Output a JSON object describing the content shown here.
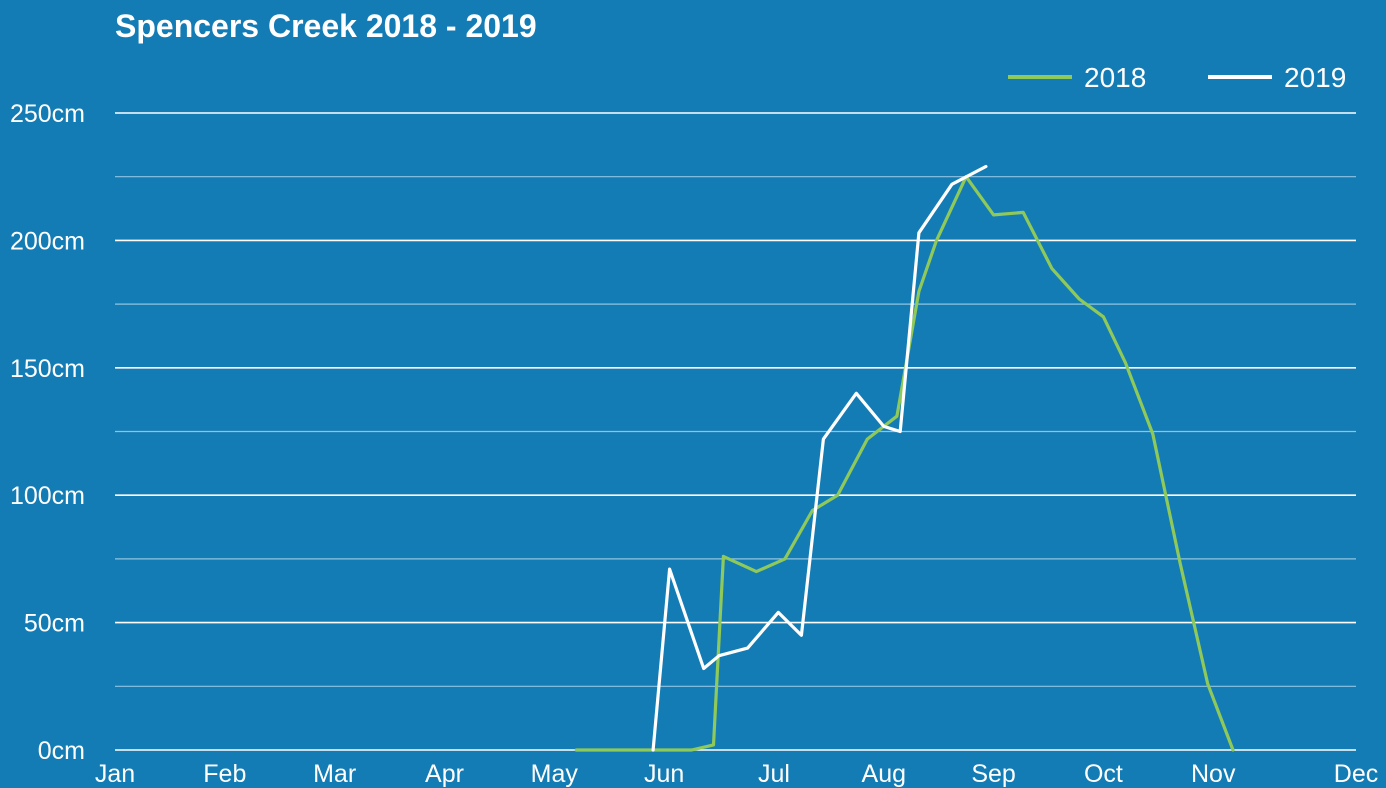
{
  "colors": {
    "background": "#147cb5",
    "grid_major": "#ffffff",
    "grid_minor": "#8fc3e2",
    "series_2018": "#8fc95a",
    "series_2019": "#ffffff"
  },
  "chart_data": {
    "type": "line",
    "title": "Spencers Creek 2018 - 2019",
    "xlabel": "",
    "ylabel": "",
    "x_unit": "month index (0 = Jan 1, 12 = Dec 31)",
    "xlim": [
      0,
      11.3
    ],
    "ylim": [
      0,
      250
    ],
    "x_tick_labels": [
      "Jan",
      "Feb",
      "Mar",
      "Apr",
      "May",
      "Jun",
      "Jul",
      "Aug",
      "Sep",
      "Oct",
      "Nov",
      "Dec"
    ],
    "x_tick_values": [
      0,
      1,
      2,
      3,
      4,
      5,
      6,
      7,
      8,
      9,
      10,
      11.3
    ],
    "y_major_ticks": [
      0,
      50,
      100,
      150,
      200,
      250
    ],
    "y_tick_labels": [
      "0cm",
      "50cm",
      "100cm",
      "150cm",
      "200cm",
      "250cm"
    ],
    "y_minor_ticks": [
      25,
      75,
      125,
      175,
      225
    ],
    "grid": true,
    "legend_position": "top-right",
    "series": [
      {
        "name": "2018",
        "color": "#8fc95a",
        "x": [
          4.2,
          4.48,
          4.76,
          5.04,
          5.25,
          5.45,
          5.54,
          5.84,
          6.1,
          6.35,
          6.58,
          6.85,
          7.12,
          7.32,
          7.48,
          7.75,
          8.0,
          8.27,
          8.53,
          8.78,
          9.0,
          9.2,
          9.45,
          9.7,
          9.95,
          10.18
        ],
        "y": [
          0,
          0,
          0,
          0,
          0,
          2,
          76,
          70,
          75,
          94,
          100,
          122,
          131,
          180,
          200,
          225,
          210,
          211,
          189,
          177,
          170,
          152,
          124,
          73,
          26,
          0
        ]
      },
      {
        "name": "2019",
        "color": "#ffffff",
        "x": [
          4.9,
          5.05,
          5.36,
          5.5,
          5.76,
          6.04,
          6.25,
          6.45,
          6.75,
          7.0,
          7.15,
          7.32,
          7.62,
          7.93
        ],
        "y": [
          0,
          71,
          32,
          37,
          40,
          54,
          45,
          122,
          140,
          127,
          125,
          203,
          222,
          229
        ]
      }
    ]
  }
}
